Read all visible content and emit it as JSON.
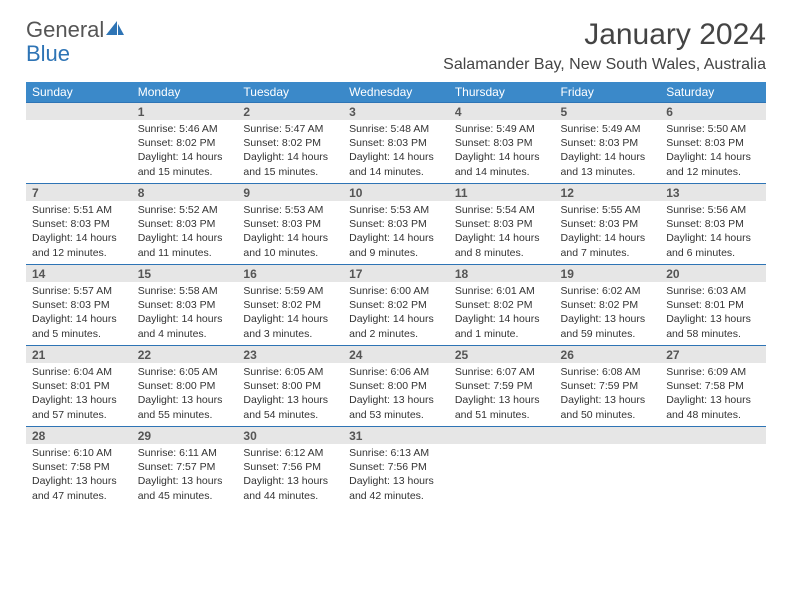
{
  "brand": {
    "part1": "General",
    "part2": "Blue"
  },
  "title": "January 2024",
  "location": "Salamander Bay, New South Wales, Australia",
  "colors": {
    "headerBg": "#3b89c9",
    "dayNumBg": "#e6e6e6",
    "ruleColor": "#2e74b5",
    "brandBlue": "#2e74b5"
  },
  "dayHeaders": [
    "Sunday",
    "Monday",
    "Tuesday",
    "Wednesday",
    "Thursday",
    "Friday",
    "Saturday"
  ],
  "weeks": [
    [
      null,
      {
        "n": "1",
        "sr": "5:46 AM",
        "ss": "8:02 PM",
        "dl": "14 hours and 15 minutes."
      },
      {
        "n": "2",
        "sr": "5:47 AM",
        "ss": "8:02 PM",
        "dl": "14 hours and 15 minutes."
      },
      {
        "n": "3",
        "sr": "5:48 AM",
        "ss": "8:03 PM",
        "dl": "14 hours and 14 minutes."
      },
      {
        "n": "4",
        "sr": "5:49 AM",
        "ss": "8:03 PM",
        "dl": "14 hours and 14 minutes."
      },
      {
        "n": "5",
        "sr": "5:49 AM",
        "ss": "8:03 PM",
        "dl": "14 hours and 13 minutes."
      },
      {
        "n": "6",
        "sr": "5:50 AM",
        "ss": "8:03 PM",
        "dl": "14 hours and 12 minutes."
      }
    ],
    [
      {
        "n": "7",
        "sr": "5:51 AM",
        "ss": "8:03 PM",
        "dl": "14 hours and 12 minutes."
      },
      {
        "n": "8",
        "sr": "5:52 AM",
        "ss": "8:03 PM",
        "dl": "14 hours and 11 minutes."
      },
      {
        "n": "9",
        "sr": "5:53 AM",
        "ss": "8:03 PM",
        "dl": "14 hours and 10 minutes."
      },
      {
        "n": "10",
        "sr": "5:53 AM",
        "ss": "8:03 PM",
        "dl": "14 hours and 9 minutes."
      },
      {
        "n": "11",
        "sr": "5:54 AM",
        "ss": "8:03 PM",
        "dl": "14 hours and 8 minutes."
      },
      {
        "n": "12",
        "sr": "5:55 AM",
        "ss": "8:03 PM",
        "dl": "14 hours and 7 minutes."
      },
      {
        "n": "13",
        "sr": "5:56 AM",
        "ss": "8:03 PM",
        "dl": "14 hours and 6 minutes."
      }
    ],
    [
      {
        "n": "14",
        "sr": "5:57 AM",
        "ss": "8:03 PM",
        "dl": "14 hours and 5 minutes."
      },
      {
        "n": "15",
        "sr": "5:58 AM",
        "ss": "8:03 PM",
        "dl": "14 hours and 4 minutes."
      },
      {
        "n": "16",
        "sr": "5:59 AM",
        "ss": "8:02 PM",
        "dl": "14 hours and 3 minutes."
      },
      {
        "n": "17",
        "sr": "6:00 AM",
        "ss": "8:02 PM",
        "dl": "14 hours and 2 minutes."
      },
      {
        "n": "18",
        "sr": "6:01 AM",
        "ss": "8:02 PM",
        "dl": "14 hours and 1 minute."
      },
      {
        "n": "19",
        "sr": "6:02 AM",
        "ss": "8:02 PM",
        "dl": "13 hours and 59 minutes."
      },
      {
        "n": "20",
        "sr": "6:03 AM",
        "ss": "8:01 PM",
        "dl": "13 hours and 58 minutes."
      }
    ],
    [
      {
        "n": "21",
        "sr": "6:04 AM",
        "ss": "8:01 PM",
        "dl": "13 hours and 57 minutes."
      },
      {
        "n": "22",
        "sr": "6:05 AM",
        "ss": "8:00 PM",
        "dl": "13 hours and 55 minutes."
      },
      {
        "n": "23",
        "sr": "6:05 AM",
        "ss": "8:00 PM",
        "dl": "13 hours and 54 minutes."
      },
      {
        "n": "24",
        "sr": "6:06 AM",
        "ss": "8:00 PM",
        "dl": "13 hours and 53 minutes."
      },
      {
        "n": "25",
        "sr": "6:07 AM",
        "ss": "7:59 PM",
        "dl": "13 hours and 51 minutes."
      },
      {
        "n": "26",
        "sr": "6:08 AM",
        "ss": "7:59 PM",
        "dl": "13 hours and 50 minutes."
      },
      {
        "n": "27",
        "sr": "6:09 AM",
        "ss": "7:58 PM",
        "dl": "13 hours and 48 minutes."
      }
    ],
    [
      {
        "n": "28",
        "sr": "6:10 AM",
        "ss": "7:58 PM",
        "dl": "13 hours and 47 minutes."
      },
      {
        "n": "29",
        "sr": "6:11 AM",
        "ss": "7:57 PM",
        "dl": "13 hours and 45 minutes."
      },
      {
        "n": "30",
        "sr": "6:12 AM",
        "ss": "7:56 PM",
        "dl": "13 hours and 44 minutes."
      },
      {
        "n": "31",
        "sr": "6:13 AM",
        "ss": "7:56 PM",
        "dl": "13 hours and 42 minutes."
      },
      null,
      null,
      null
    ]
  ],
  "labels": {
    "sunrise": "Sunrise:",
    "sunset": "Sunset:",
    "daylight": "Daylight:"
  }
}
